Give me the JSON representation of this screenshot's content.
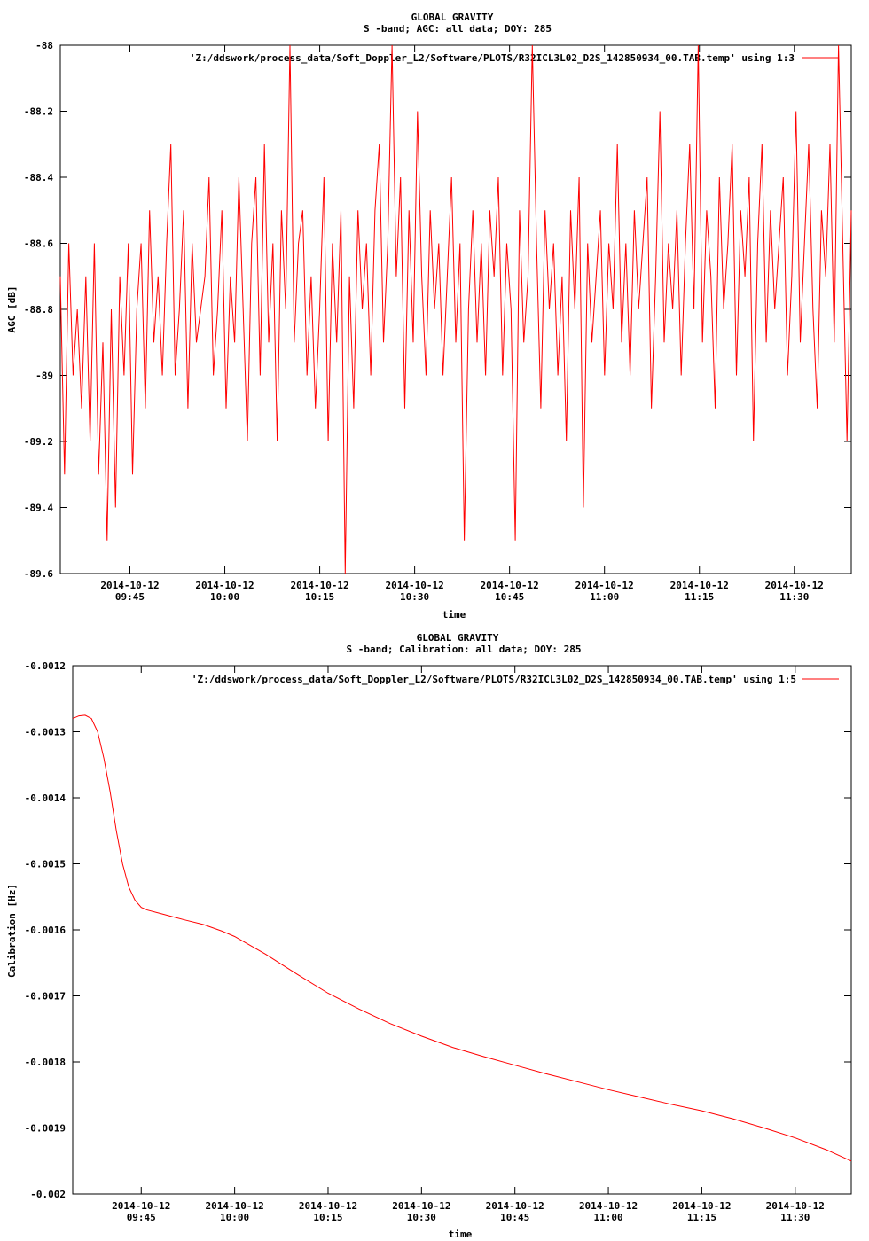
{
  "chart_data": [
    {
      "type": "line",
      "title": "GLOBAL GRAVITY",
      "subtitle": "S -band; AGC: all data; DOY: 285",
      "xlabel": "time",
      "ylabel": "AGC [dB]",
      "legend": "'Z:/ddswork/process_data/Soft_Doppler_L2/Software/PLOTS/R32ICL3L02_D2S_142850934_00.TAB.temp' using 1:3",
      "legend_position": "top-right",
      "color": "#ff0000",
      "ylim": [
        -89.6,
        -88
      ],
      "xlim": [
        "2014-10-12 09:34",
        "2014-10-12 11:39"
      ],
      "yticks": [
        "-88",
        "-88.2",
        "-88.4",
        "-88.6",
        "-88.8",
        "-89",
        "-89.2",
        "-89.4",
        "-89.6"
      ],
      "ytick_values": [
        -88,
        -88.2,
        -88.4,
        -88.6,
        -88.8,
        -89,
        -89.2,
        -89.4,
        -89.6
      ],
      "xtick_dates": [
        "2014-10-12",
        "2014-10-12",
        "2014-10-12",
        "2014-10-12",
        "2014-10-12",
        "2014-10-12",
        "2014-10-12",
        "2014-10-12"
      ],
      "xtick_times": [
        "09:45",
        "10:00",
        "10:15",
        "10:30",
        "10:45",
        "11:00",
        "11:15",
        "11:30"
      ],
      "series": [
        {
          "x_start": "2014-10-12 09:34",
          "x_end": "2014-10-12 11:39",
          "values": [
            -88.7,
            -89.3,
            -88.6,
            -89.0,
            -88.8,
            -89.1,
            -88.7,
            -89.2,
            -88.6,
            -89.3,
            -88.9,
            -89.5,
            -88.8,
            -89.4,
            -88.7,
            -89.0,
            -88.6,
            -89.3,
            -88.8,
            -88.6,
            -89.1,
            -88.5,
            -88.9,
            -88.7,
            -89.0,
            -88.6,
            -88.3,
            -89.0,
            -88.8,
            -88.5,
            -89.1,
            -88.6,
            -88.9,
            -88.8,
            -88.7,
            -88.4,
            -89.0,
            -88.8,
            -88.5,
            -89.1,
            -88.7,
            -88.9,
            -88.4,
            -88.8,
            -89.2,
            -88.6,
            -88.4,
            -89.0,
            -88.3,
            -88.9,
            -88.6,
            -89.2,
            -88.5,
            -88.8,
            -88.0,
            -88.9,
            -88.6,
            -88.5,
            -89.0,
            -88.7,
            -89.1,
            -88.8,
            -88.4,
            -89.2,
            -88.6,
            -88.9,
            -88.5,
            -89.6,
            -88.7,
            -89.1,
            -88.5,
            -88.8,
            -88.6,
            -89.0,
            -88.5,
            -88.3,
            -88.9,
            -88.6,
            -88.0,
            -88.7,
            -88.4,
            -89.1,
            -88.5,
            -88.9,
            -88.2,
            -88.7,
            -89.0,
            -88.5,
            -88.8,
            -88.6,
            -89.0,
            -88.7,
            -88.4,
            -88.9,
            -88.6,
            -89.5,
            -88.8,
            -88.5,
            -88.9,
            -88.6,
            -89.0,
            -88.5,
            -88.7,
            -88.4,
            -89.0,
            -88.6,
            -88.8,
            -89.5,
            -88.5,
            -88.9,
            -88.7,
            -88.0,
            -88.6,
            -89.1,
            -88.5,
            -88.8,
            -88.6,
            -89.0,
            -88.7,
            -89.2,
            -88.5,
            -88.8,
            -88.4,
            -89.4,
            -88.6,
            -88.9,
            -88.7,
            -88.5,
            -89.0,
            -88.6,
            -88.8,
            -88.3,
            -88.9,
            -88.6,
            -89.0,
            -88.5,
            -88.8,
            -88.6,
            -88.4,
            -89.1,
            -88.7,
            -88.2,
            -88.9,
            -88.6,
            -88.8,
            -88.5,
            -89.0,
            -88.6,
            -88.3,
            -88.8,
            -88.0,
            -88.9,
            -88.5,
            -88.7,
            -89.1,
            -88.4,
            -88.8,
            -88.6,
            -88.3,
            -89.0,
            -88.5,
            -88.7,
            -88.4,
            -89.2,
            -88.6,
            -88.3,
            -88.9,
            -88.5,
            -88.8,
            -88.6,
            -88.4,
            -89.0,
            -88.7,
            -88.2,
            -88.9,
            -88.6,
            -88.3,
            -88.8,
            -89.1,
            -88.5,
            -88.7,
            -88.3,
            -88.9,
            -88.0,
            -88.6,
            -89.2,
            -88.5
          ]
        }
      ]
    },
    {
      "type": "line",
      "title": "GLOBAL GRAVITY",
      "subtitle": "S -band; Calibration: all data; DOY: 285",
      "xlabel": "time",
      "ylabel": "Calibration [Hz]",
      "legend": "'Z:/ddswork/process_data/Soft_Doppler_L2/Software/PLOTS/R32ICL3L02_D2S_142850934_00.TAB.temp' using 1:5",
      "legend_position": "top-right",
      "color": "#ff0000",
      "ylim": [
        -0.002,
        -0.0012
      ],
      "xlim": [
        "2014-10-12 09:34",
        "2014-10-12 11:39"
      ],
      "yticks": [
        "-0.0012",
        "-0.0013",
        "-0.0014",
        "-0.0015",
        "-0.0016",
        "-0.0017",
        "-0.0018",
        "-0.0019",
        "-0.002"
      ],
      "ytick_values": [
        -0.0012,
        -0.0013,
        -0.0014,
        -0.0015,
        -0.0016,
        -0.0017,
        -0.0018,
        -0.0019,
        -0.002
      ],
      "xtick_dates": [
        "2014-10-12",
        "2014-10-12",
        "2014-10-12",
        "2014-10-12",
        "2014-10-12",
        "2014-10-12",
        "2014-10-12",
        "2014-10-12"
      ],
      "xtick_times": [
        "09:45",
        "10:00",
        "10:15",
        "10:30",
        "10:45",
        "11:00",
        "11:15",
        "11:30"
      ],
      "series": [
        {
          "x": [
            "09:34",
            "09:35",
            "09:36",
            "09:37",
            "09:38",
            "09:39",
            "09:40",
            "09:41",
            "09:42",
            "09:43",
            "09:44",
            "09:45",
            "09:46",
            "09:48",
            "09:50",
            "09:52",
            "09:55",
            "09:58",
            "10:00",
            "10:05",
            "10:10",
            "10:15",
            "10:20",
            "10:25",
            "10:30",
            "10:35",
            "10:40",
            "10:45",
            "10:50",
            "10:55",
            "11:00",
            "11:05",
            "11:10",
            "11:15",
            "11:20",
            "11:25",
            "11:30",
            "11:35",
            "11:39"
          ],
          "y": [
            -0.00128,
            -0.001276,
            -0.001275,
            -0.00128,
            -0.0013,
            -0.00134,
            -0.00139,
            -0.00145,
            -0.0015,
            -0.001535,
            -0.001555,
            -0.001566,
            -0.00157,
            -0.001575,
            -0.00158,
            -0.001585,
            -0.001592,
            -0.001602,
            -0.00161,
            -0.001637,
            -0.001667,
            -0.001696,
            -0.00172,
            -0.001742,
            -0.001761,
            -0.001778,
            -0.001792,
            -0.001805,
            -0.001818,
            -0.00183,
            -0.001842,
            -0.001853,
            -0.001864,
            -0.001874,
            -0.001886,
            -0.0019,
            -0.001915,
            -0.001933,
            -0.00195
          ]
        }
      ]
    }
  ]
}
